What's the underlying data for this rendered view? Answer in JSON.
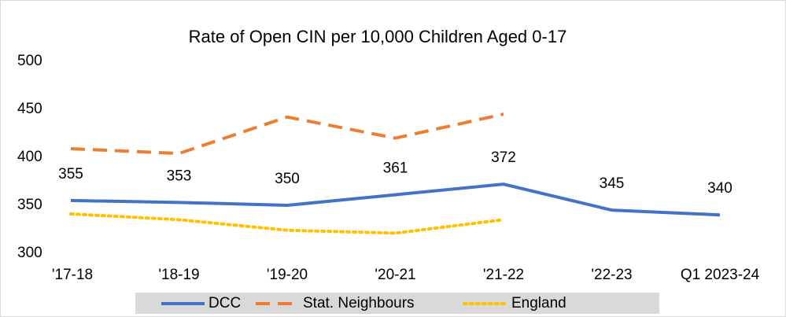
{
  "chart_data": {
    "type": "line",
    "title": "Rate of Open CIN per 10,000 Children Aged 0-17",
    "categories": [
      "'17-18",
      "'18-19",
      "'19-20",
      "'20-21",
      "'21-22",
      "'22-23",
      "Q1 2023-24"
    ],
    "series": [
      {
        "name": "DCC",
        "color": "#4472c4",
        "style": "solid",
        "values": [
          355,
          353,
          350,
          361,
          372,
          345,
          340
        ]
      },
      {
        "name": "Stat. Neighbours",
        "color": "#ed7d31",
        "style": "dashed",
        "values": [
          409,
          404,
          442,
          420,
          445,
          null,
          null
        ]
      },
      {
        "name": "England",
        "color": "#ffc000",
        "style": "dotted",
        "values": [
          341,
          335,
          324,
          321,
          335,
          null,
          null
        ]
      }
    ],
    "data_labels_series": 0,
    "ylim": [
      300,
      500
    ],
    "yticks": [
      300,
      350,
      400,
      450,
      500
    ],
    "grid": false,
    "legend": "bottom"
  }
}
